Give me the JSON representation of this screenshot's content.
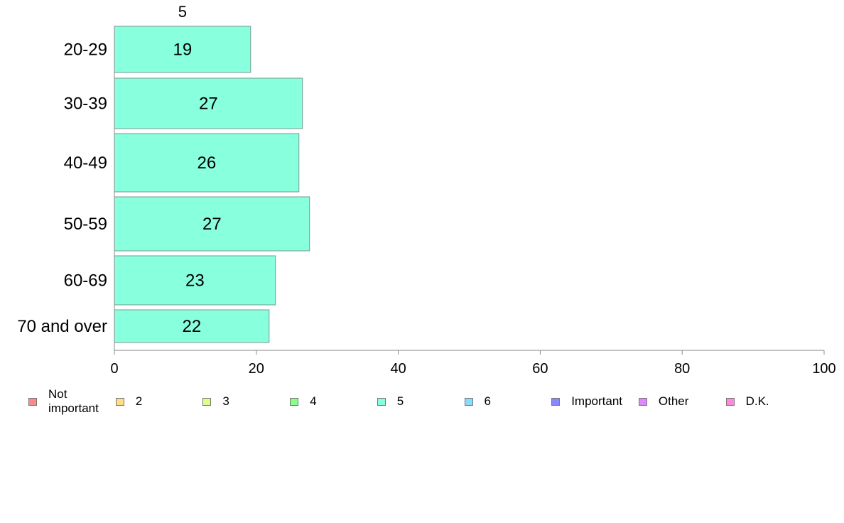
{
  "chart_data": {
    "type": "bar",
    "orientation": "horizontal",
    "stacked": true,
    "top_label": "5",
    "categories": [
      "20-29",
      "30-39",
      "40-49",
      "50-59",
      "60-69",
      "70 and over"
    ],
    "series": [
      {
        "name": "5",
        "color": "#88ffdd",
        "values": [
          19,
          27,
          26,
          27,
          23,
          22
        ],
        "exact_values": [
          19.2,
          26.5,
          26.0,
          27.5,
          22.7,
          21.8
        ]
      }
    ],
    "xlim": [
      0,
      100
    ],
    "xticks": [
      "0",
      "20",
      "40",
      "60",
      "80",
      "100"
    ],
    "xtick_values": [
      0,
      20,
      40,
      60,
      80,
      100
    ],
    "grid": false,
    "legend_position": "bottom"
  },
  "legend": [
    {
      "label": "Not important",
      "color": "#ff8888"
    },
    {
      "label": "2",
      "color": "#ffdd88"
    },
    {
      "label": "3",
      "color": "#ddff88"
    },
    {
      "label": "4",
      "color": "#88ff88"
    },
    {
      "label": "5",
      "color": "#88ffdd"
    },
    {
      "label": "6",
      "color": "#88ddff"
    },
    {
      "label": "Important",
      "color": "#8888ff"
    },
    {
      "label": "Other",
      "color": "#dd88ff"
    },
    {
      "label": "D.K.",
      "color": "#ff88dd"
    }
  ]
}
